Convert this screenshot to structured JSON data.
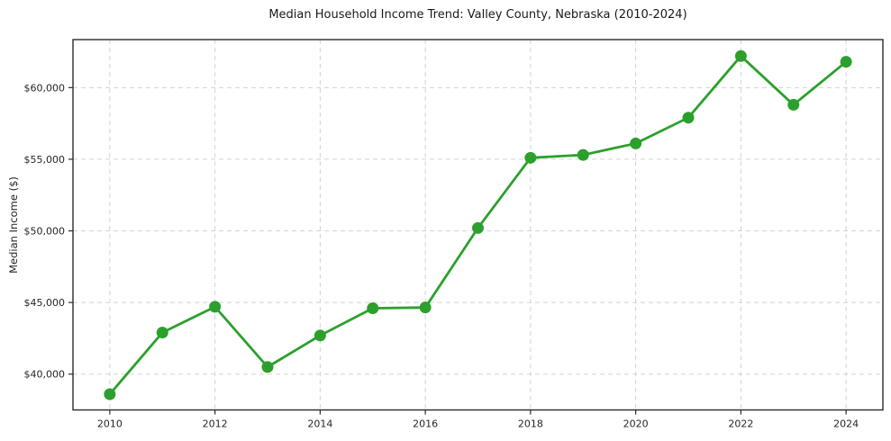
{
  "chart_data": {
    "type": "line",
    "title": "Median Household Income Trend: Valley County, Nebraska (2010-2024)",
    "xlabel": "",
    "ylabel": "Median Income ($)",
    "series_name": "Median Household Income",
    "x": [
      2010,
      2011,
      2012,
      2013,
      2014,
      2015,
      2016,
      2017,
      2018,
      2019,
      2020,
      2021,
      2022,
      2023,
      2024
    ],
    "values": [
      38600,
      42900,
      44700,
      40500,
      42700,
      44600,
      44650,
      50200,
      55100,
      55300,
      56100,
      57900,
      62200,
      58800,
      61800
    ],
    "xticks": [
      2010,
      2012,
      2014,
      2016,
      2018,
      2020,
      2022,
      2024
    ],
    "yticks": [
      40000,
      45000,
      50000,
      55000,
      60000
    ],
    "ytick_labels": [
      "$40,000",
      "$45,000",
      "$50,000",
      "$55,000",
      "$60,000"
    ],
    "xlim": [
      2009.3,
      2024.7
    ],
    "ylim": [
      37500,
      63350
    ],
    "grid": true,
    "grid_style": "dashed",
    "legend": "none",
    "line_color": "#2ca02c",
    "marker": "circle",
    "grid_color": "#d3d3d3",
    "spine_color": "#2b2b2b",
    "text_color": "#262626",
    "background_color": "#ffffff"
  }
}
